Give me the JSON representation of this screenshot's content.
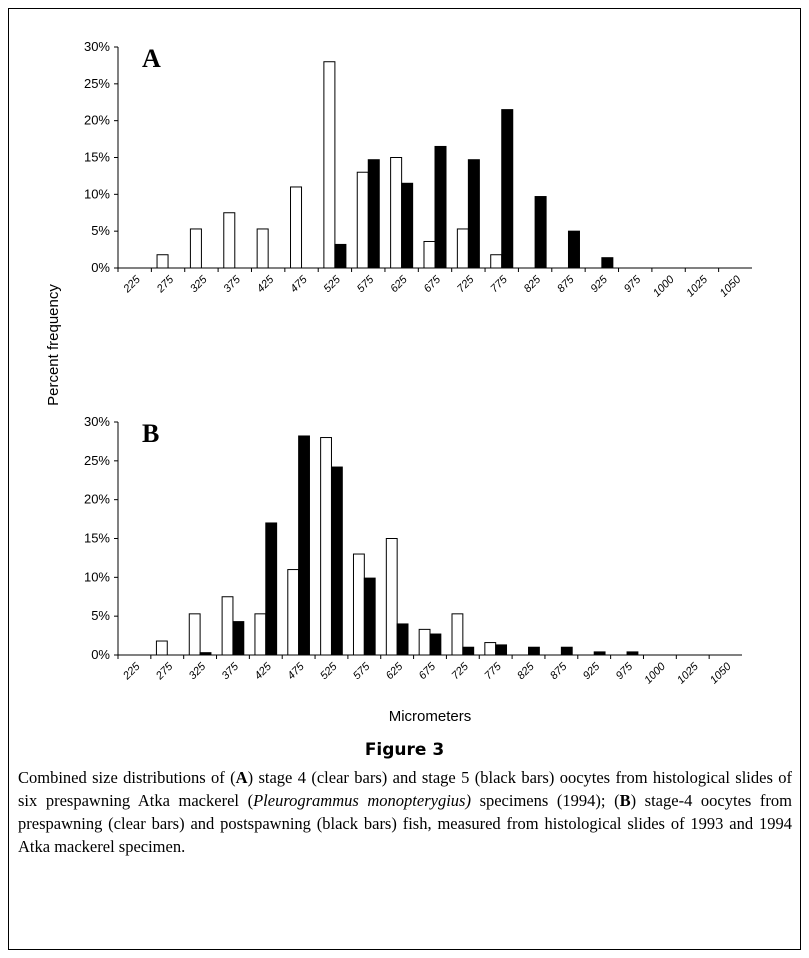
{
  "chart_data": [
    {
      "type": "bar",
      "title": "A",
      "ylabel": "Percent frequency",
      "categories": [
        "225",
        "275",
        "325",
        "375",
        "425",
        "475",
        "525",
        "575",
        "625",
        "675",
        "725",
        "775",
        "825",
        "875",
        "925",
        "975",
        "1000",
        "1025",
        "1050"
      ],
      "series": [
        {
          "color": "#ffffff",
          "values": [
            0,
            1.8,
            5.3,
            7.5,
            5.3,
            11,
            28,
            13,
            15,
            3.6,
            5.3,
            1.8,
            0,
            0,
            0,
            0,
            0,
            0,
            0
          ]
        },
        {
          "color": "#000000",
          "values": [
            0,
            0,
            0,
            0,
            0,
            0,
            3.2,
            14.7,
            11.5,
            16.5,
            14.7,
            21.5,
            9.7,
            5.0,
            1.4,
            0,
            0,
            0,
            0
          ]
        }
      ],
      "ylim": [
        0,
        30
      ],
      "yticks": [
        {
          "value": 0,
          "label": "0%"
        },
        {
          "value": 5,
          "label": "5%"
        },
        {
          "value": 10,
          "label": "10%"
        },
        {
          "value": 15,
          "label": "15%"
        },
        {
          "value": 20,
          "label": "20%"
        },
        {
          "value": 25,
          "label": "25%"
        },
        {
          "value": 30,
          "label": "30%"
        }
      ]
    },
    {
      "type": "bar",
      "title": "B",
      "xlabel": "Micrometers",
      "categories": [
        "225",
        "275",
        "325",
        "375",
        "425",
        "475",
        "525",
        "575",
        "625",
        "675",
        "725",
        "775",
        "825",
        "875",
        "925",
        "975",
        "1000",
        "1025",
        "1050"
      ],
      "series": [
        {
          "color": "#ffffff",
          "values": [
            0,
            1.8,
            5.3,
            7.5,
            5.3,
            11,
            28,
            13,
            15,
            3.3,
            5.3,
            1.6,
            0,
            0,
            0,
            0,
            0,
            0,
            0
          ]
        },
        {
          "color": "#000000",
          "values": [
            0,
            0,
            0.3,
            4.3,
            17,
            28.2,
            24.2,
            9.9,
            4.0,
            2.7,
            1.0,
            1.3,
            1.0,
            1.0,
            0.4,
            0.4,
            0,
            0,
            0
          ]
        }
      ],
      "ylim": [
        0,
        30
      ],
      "yticks": [
        {
          "value": 0,
          "label": "0%"
        },
        {
          "value": 5,
          "label": "5%"
        },
        {
          "value": 10,
          "label": "10%"
        },
        {
          "value": 15,
          "label": "15%"
        },
        {
          "value": 20,
          "label": "20%"
        },
        {
          "value": 25,
          "label": "25%"
        },
        {
          "value": 30,
          "label": "30%"
        }
      ]
    }
  ],
  "figure": {
    "label": "Figure 3",
    "caption": [
      {
        "text": "Combined size distributions of (",
        "style": "normal"
      },
      {
        "text": "A",
        "style": "bold"
      },
      {
        "text": ") stage 4 (clear bars) and stage 5 (black bars) oocytes from histological slides of six prespawning Atka mackerel (",
        "style": "normal"
      },
      {
        "text": "Pleurogrammus monopterygius)",
        "style": "italic"
      },
      {
        "text": " specimens (1994); (",
        "style": "normal"
      },
      {
        "text": "B",
        "style": "bold"
      },
      {
        "text": ") stage-4 oocytes from prespawning (clear bars) and postspawning (black bars) fish, measured from histological slides of 1993 and 1994 Atka mackerel specimen.",
        "style": "normal"
      }
    ]
  }
}
